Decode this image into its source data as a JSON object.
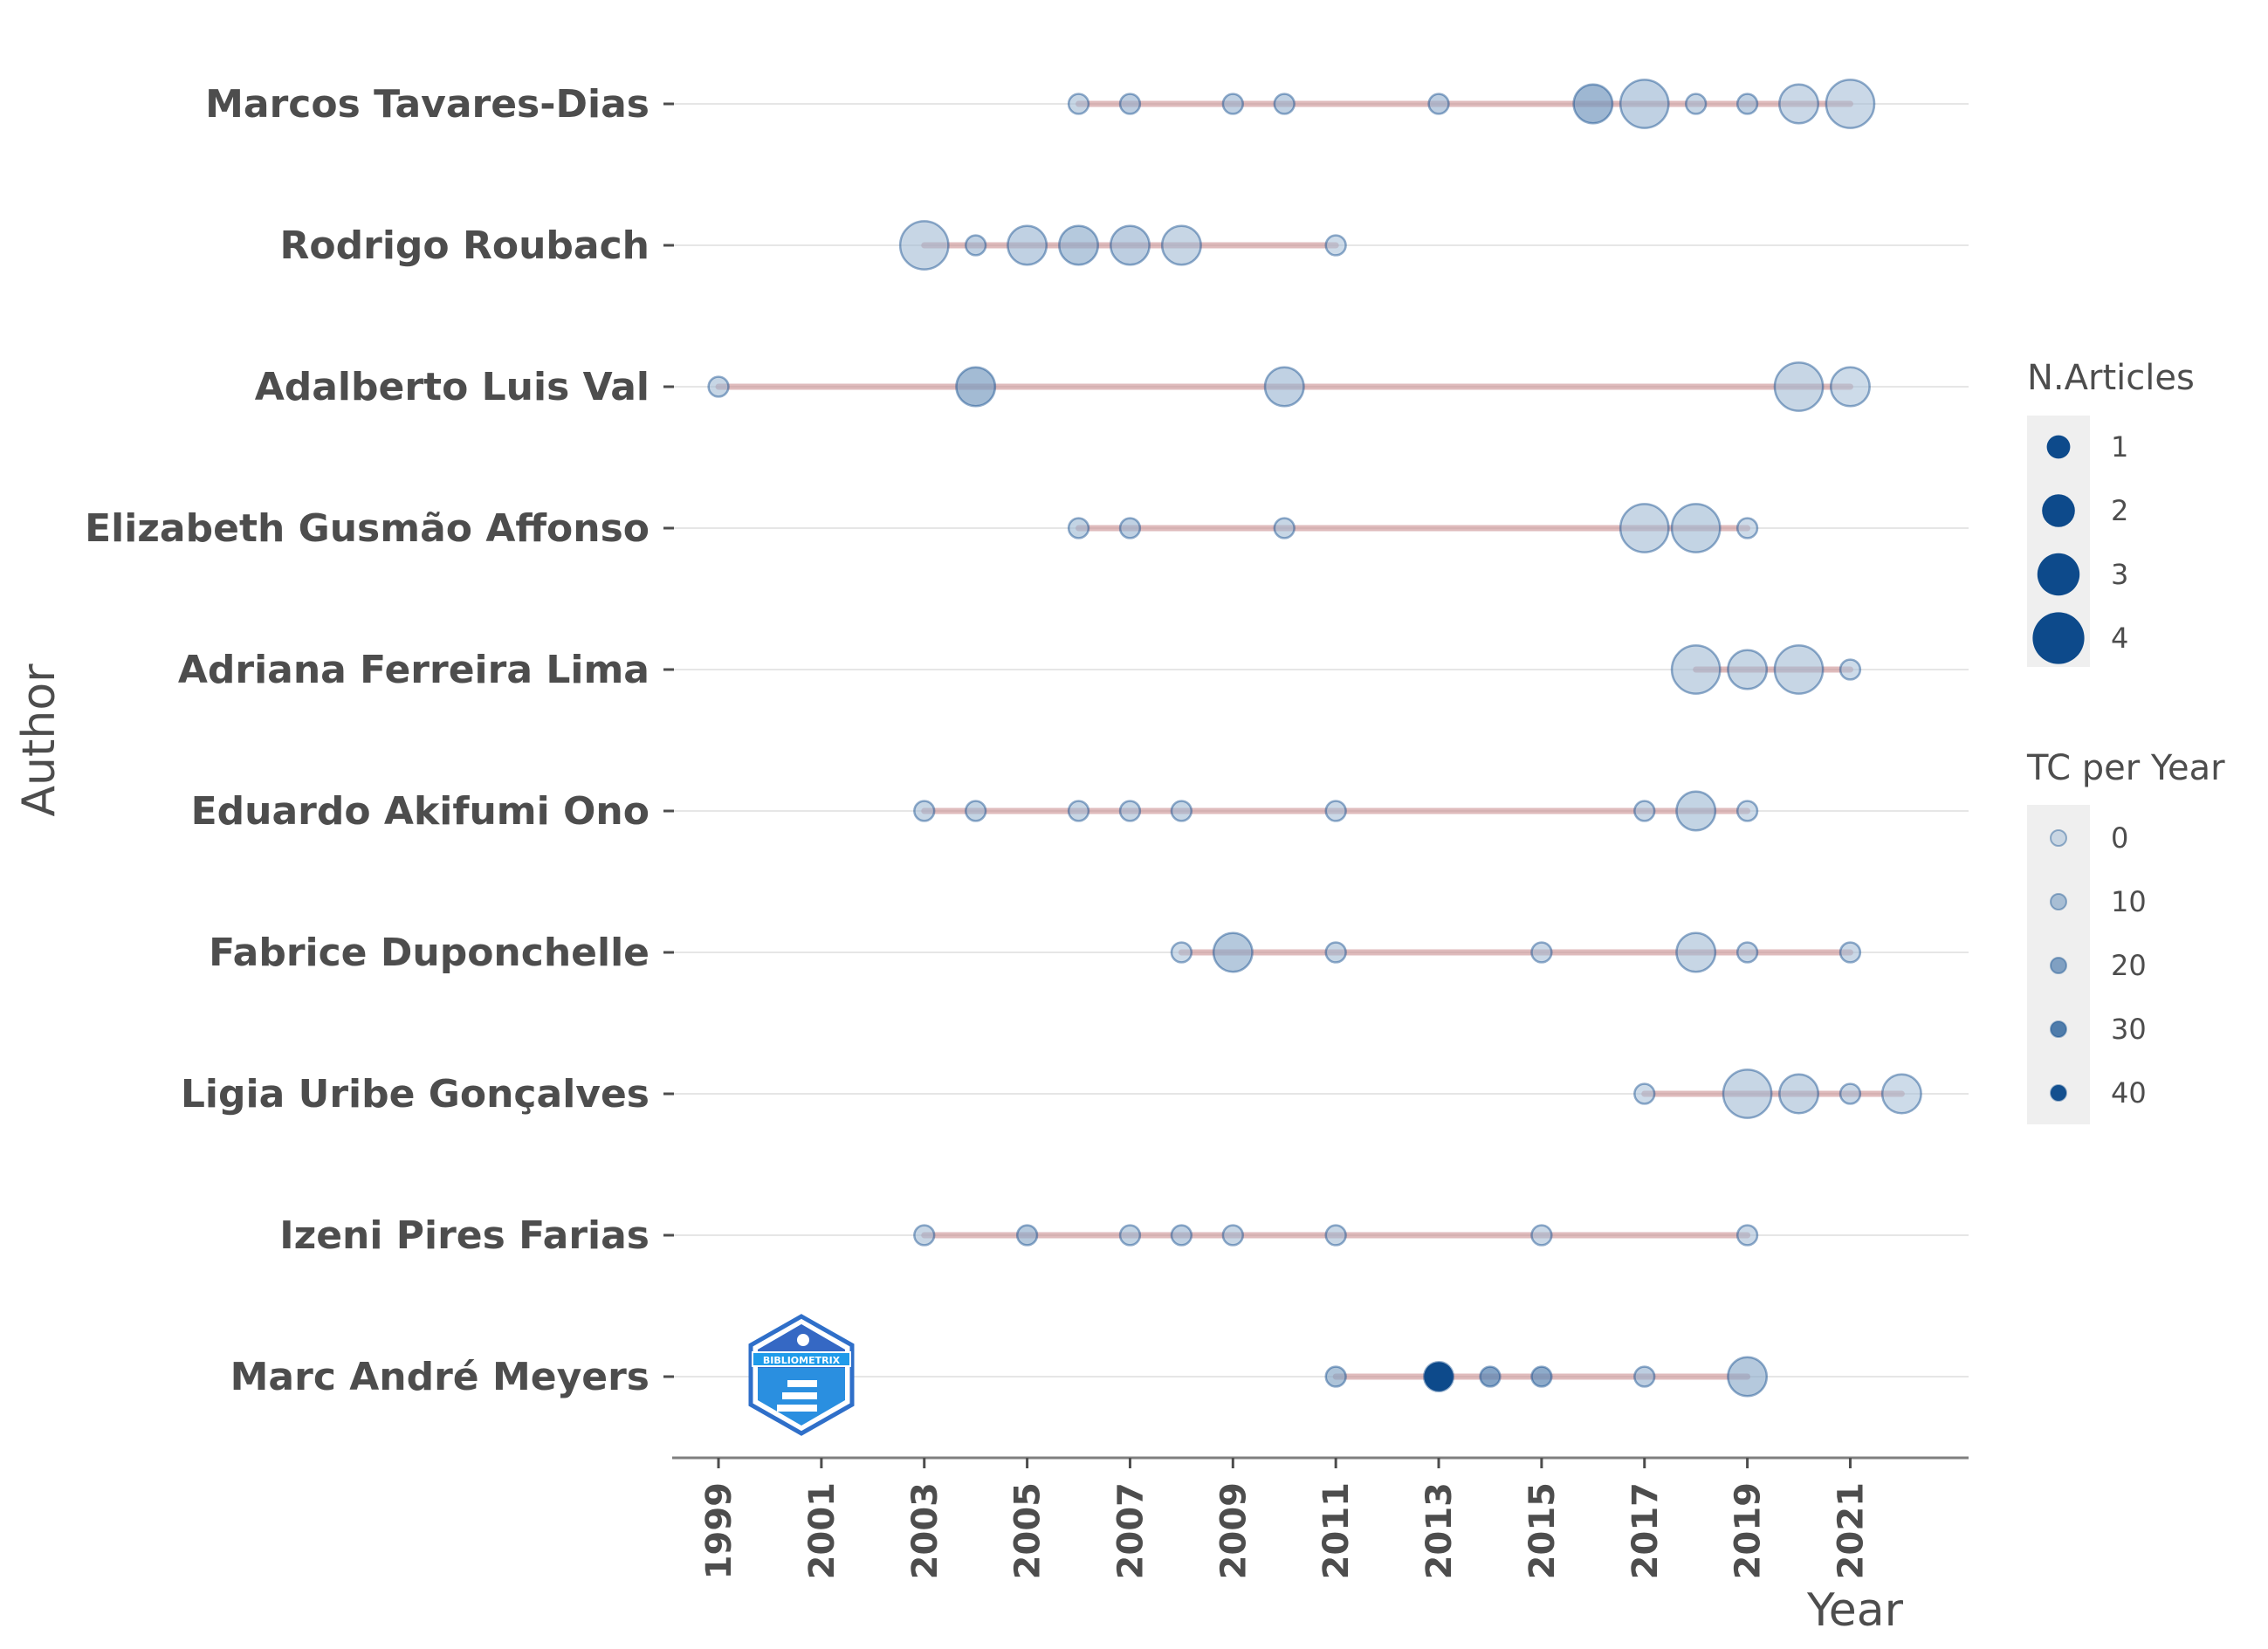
{
  "chart_data": {
    "type": "scatter",
    "xlabel": "Year",
    "ylabel": "Author",
    "xlim": [
      1998.1,
      2023.3
    ],
    "x_ticks": [
      1999,
      2001,
      2003,
      2005,
      2007,
      2009,
      2011,
      2013,
      2015,
      2017,
      2019,
      2021
    ],
    "authors": [
      {
        "name": "Marcos Tavares-Dias",
        "start": 2006,
        "end": 2021,
        "points": [
          {
            "year": 2006,
            "n": 1,
            "tc": 3
          },
          {
            "year": 2007,
            "n": 1,
            "tc": 6
          },
          {
            "year": 2009,
            "n": 1,
            "tc": 5
          },
          {
            "year": 2010,
            "n": 1,
            "tc": 5
          },
          {
            "year": 2013,
            "n": 1,
            "tc": 6
          },
          {
            "year": 2016,
            "n": 3,
            "tc": 14
          },
          {
            "year": 2017,
            "n": 4,
            "tc": 5
          },
          {
            "year": 2018,
            "n": 1,
            "tc": 3
          },
          {
            "year": 2019,
            "n": 1,
            "tc": 5
          },
          {
            "year": 2020,
            "n": 3,
            "tc": 2
          },
          {
            "year": 2021,
            "n": 4,
            "tc": 2
          }
        ]
      },
      {
        "name": "Rodrigo Roubach",
        "start": 2003,
        "end": 2011,
        "points": [
          {
            "year": 2003,
            "n": 4,
            "tc": 3
          },
          {
            "year": 2004,
            "n": 1,
            "tc": 5
          },
          {
            "year": 2005,
            "n": 3,
            "tc": 5
          },
          {
            "year": 2006,
            "n": 3,
            "tc": 8
          },
          {
            "year": 2007,
            "n": 3,
            "tc": 6
          },
          {
            "year": 2008,
            "n": 3,
            "tc": 3
          },
          {
            "year": 2011,
            "n": 1,
            "tc": 1
          }
        ]
      },
      {
        "name": "Adalberto Luis Val",
        "start": 1999,
        "end": 2021,
        "points": [
          {
            "year": 1999,
            "n": 1,
            "tc": 3
          },
          {
            "year": 2004,
            "n": 3,
            "tc": 13
          },
          {
            "year": 2010,
            "n": 3,
            "tc": 5
          },
          {
            "year": 2020,
            "n": 4,
            "tc": 3
          },
          {
            "year": 2021,
            "n": 3,
            "tc": 1
          }
        ]
      },
      {
        "name": "Elizabeth Gusmão Affonso",
        "start": 2006,
        "end": 2019,
        "points": [
          {
            "year": 2006,
            "n": 1,
            "tc": 4
          },
          {
            "year": 2007,
            "n": 1,
            "tc": 5
          },
          {
            "year": 2010,
            "n": 1,
            "tc": 3
          },
          {
            "year": 2017,
            "n": 4,
            "tc": 3
          },
          {
            "year": 2018,
            "n": 4,
            "tc": 4
          },
          {
            "year": 2019,
            "n": 1,
            "tc": 1
          }
        ]
      },
      {
        "name": "Adriana Ferreira Lima",
        "start": 2018,
        "end": 2021,
        "points": [
          {
            "year": 2018,
            "n": 4,
            "tc": 3
          },
          {
            "year": 2019,
            "n": 3,
            "tc": 3
          },
          {
            "year": 2020,
            "n": 4,
            "tc": 3
          },
          {
            "year": 2021,
            "n": 1,
            "tc": 1
          }
        ]
      },
      {
        "name": "Eduardo Akifumi Ono",
        "start": 2003,
        "end": 2019,
        "points": [
          {
            "year": 2003,
            "n": 1,
            "tc": 3
          },
          {
            "year": 2004,
            "n": 1,
            "tc": 4
          },
          {
            "year": 2006,
            "n": 1,
            "tc": 3
          },
          {
            "year": 2007,
            "n": 1,
            "tc": 3
          },
          {
            "year": 2008,
            "n": 1,
            "tc": 3
          },
          {
            "year": 2011,
            "n": 1,
            "tc": 2
          },
          {
            "year": 2017,
            "n": 1,
            "tc": 2
          },
          {
            "year": 2018,
            "n": 3,
            "tc": 4
          },
          {
            "year": 2019,
            "n": 1,
            "tc": 1
          }
        ]
      },
      {
        "name": "Fabrice Duponchelle",
        "start": 2008,
        "end": 2021,
        "points": [
          {
            "year": 2008,
            "n": 1,
            "tc": 1
          },
          {
            "year": 2009,
            "n": 3,
            "tc": 8
          },
          {
            "year": 2011,
            "n": 1,
            "tc": 3
          },
          {
            "year": 2015,
            "n": 1,
            "tc": 2
          },
          {
            "year": 2018,
            "n": 3,
            "tc": 3
          },
          {
            "year": 2019,
            "n": 1,
            "tc": 2
          },
          {
            "year": 2021,
            "n": 1,
            "tc": 2
          }
        ]
      },
      {
        "name": "Ligia Uribe Gonçalves",
        "start": 2017,
        "end": 2022,
        "points": [
          {
            "year": 2017,
            "n": 1,
            "tc": 1
          },
          {
            "year": 2019,
            "n": 4,
            "tc": 3
          },
          {
            "year": 2020,
            "n": 3,
            "tc": 3
          },
          {
            "year": 2021,
            "n": 1,
            "tc": 2
          },
          {
            "year": 2022,
            "n": 3,
            "tc": 1
          }
        ]
      },
      {
        "name": "Izeni Pires Farias",
        "start": 2003,
        "end": 2019,
        "points": [
          {
            "year": 2003,
            "n": 1,
            "tc": 3
          },
          {
            "year": 2005,
            "n": 1,
            "tc": 8
          },
          {
            "year": 2007,
            "n": 1,
            "tc": 4
          },
          {
            "year": 2008,
            "n": 1,
            "tc": 5
          },
          {
            "year": 2009,
            "n": 1,
            "tc": 3
          },
          {
            "year": 2011,
            "n": 1,
            "tc": 3
          },
          {
            "year": 2015,
            "n": 1,
            "tc": 2
          },
          {
            "year": 2019,
            "n": 1,
            "tc": 2
          }
        ]
      },
      {
        "name": "Marc André Meyers",
        "start": 2011,
        "end": 2019,
        "points": [
          {
            "year": 2011,
            "n": 1,
            "tc": 10
          },
          {
            "year": 2013,
            "n": 2,
            "tc": 42
          },
          {
            "year": 2014,
            "n": 1,
            "tc": 20
          },
          {
            "year": 2015,
            "n": 1,
            "tc": 18
          },
          {
            "year": 2017,
            "n": 1,
            "tc": 6
          },
          {
            "year": 2019,
            "n": 3,
            "tc": 8
          }
        ]
      }
    ],
    "legend_size": {
      "title": "N.Articles",
      "values": [
        1,
        2,
        3,
        4
      ]
    },
    "legend_color": {
      "title": "TC per Year",
      "values": [
        0,
        10,
        20,
        30,
        40
      ]
    },
    "grid": true,
    "legend_position": "right"
  },
  "logo": {
    "text": "BIBLIOMETRIX"
  },
  "colors": {
    "point_light": "#a9c1d9",
    "point_dark": "#0d4a8b",
    "segment": "#c98d90",
    "legend_bg": "#efefef"
  }
}
